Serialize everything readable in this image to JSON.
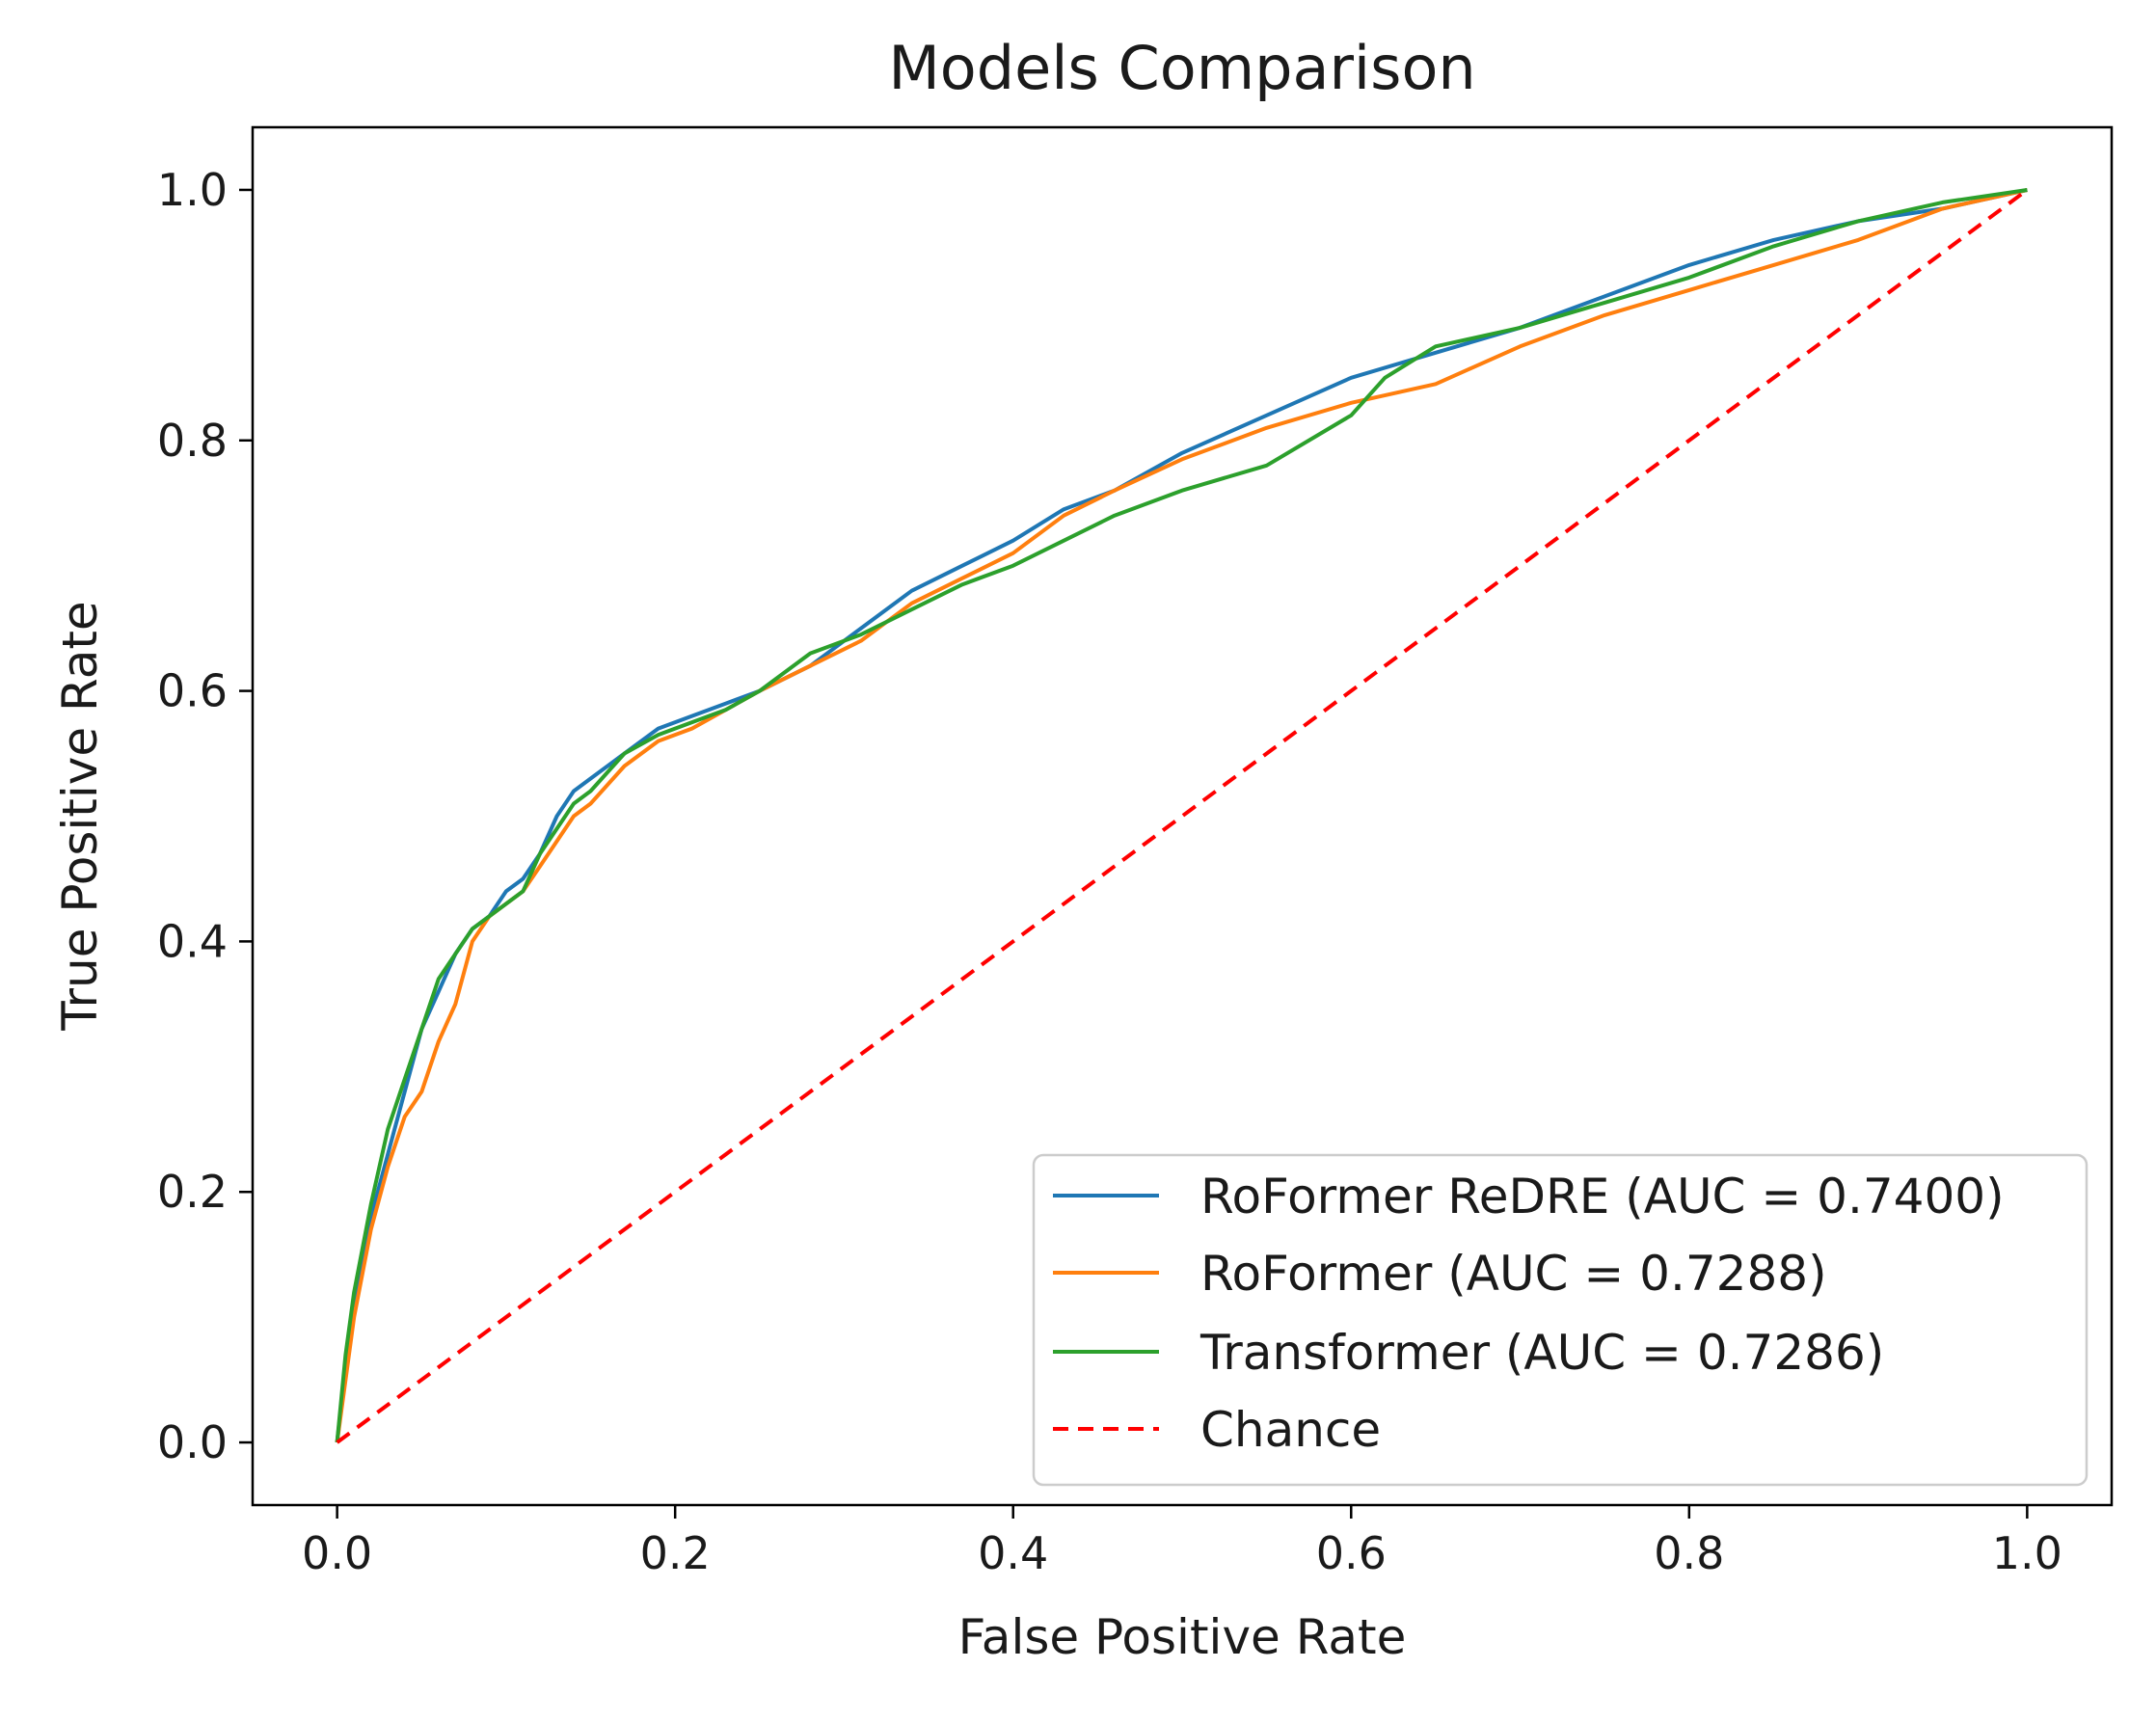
{
  "chart_data": {
    "type": "line",
    "title": "Models Comparison",
    "xlabel": "False Positive Rate",
    "ylabel": "True Positive Rate",
    "xlim": [
      -0.05,
      1.05
    ],
    "ylim": [
      -0.05,
      1.05
    ],
    "xticks": [
      0.0,
      0.2,
      0.4,
      0.6,
      0.8,
      1.0
    ],
    "yticks": [
      0.0,
      0.2,
      0.4,
      0.6,
      0.8,
      1.0
    ],
    "xtick_labels": [
      "0.0",
      "0.2",
      "0.4",
      "0.6",
      "0.8",
      "1.0"
    ],
    "ytick_labels": [
      "0.0",
      "0.2",
      "0.4",
      "0.6",
      "0.8",
      "1.0"
    ],
    "grid": false,
    "legend_position": "lower-right",
    "series": [
      {
        "name": "RoFormer ReDRE (AUC = 0.7400)",
        "color": "#1f77b4",
        "style": "solid",
        "x": [
          0,
          0.005,
          0.01,
          0.02,
          0.03,
          0.04,
          0.05,
          0.06,
          0.07,
          0.08,
          0.09,
          0.1,
          0.11,
          0.12,
          0.13,
          0.14,
          0.15,
          0.17,
          0.19,
          0.21,
          0.23,
          0.25,
          0.28,
          0.31,
          0.34,
          0.37,
          0.4,
          0.43,
          0.46,
          0.5,
          0.55,
          0.6,
          0.65,
          0.7,
          0.75,
          0.8,
          0.85,
          0.9,
          0.95,
          1.0
        ],
        "y": [
          0,
          0.06,
          0.11,
          0.18,
          0.23,
          0.28,
          0.33,
          0.36,
          0.39,
          0.41,
          0.42,
          0.44,
          0.45,
          0.47,
          0.5,
          0.52,
          0.53,
          0.55,
          0.57,
          0.58,
          0.59,
          0.6,
          0.62,
          0.65,
          0.68,
          0.7,
          0.72,
          0.745,
          0.76,
          0.79,
          0.82,
          0.85,
          0.87,
          0.89,
          0.915,
          0.94,
          0.96,
          0.975,
          0.985,
          1.0
        ]
      },
      {
        "name": "RoFormer (AUC = 0.7288)",
        "color": "#ff7f0e",
        "style": "solid",
        "x": [
          0,
          0.005,
          0.01,
          0.02,
          0.03,
          0.04,
          0.05,
          0.06,
          0.07,
          0.08,
          0.09,
          0.1,
          0.11,
          0.12,
          0.13,
          0.14,
          0.15,
          0.17,
          0.19,
          0.21,
          0.23,
          0.25,
          0.28,
          0.31,
          0.34,
          0.37,
          0.4,
          0.43,
          0.46,
          0.5,
          0.55,
          0.6,
          0.65,
          0.7,
          0.75,
          0.8,
          0.85,
          0.9,
          0.95,
          1.0
        ],
        "y": [
          0,
          0.05,
          0.1,
          0.17,
          0.22,
          0.26,
          0.28,
          0.32,
          0.35,
          0.4,
          0.42,
          0.43,
          0.44,
          0.46,
          0.48,
          0.5,
          0.51,
          0.54,
          0.56,
          0.57,
          0.585,
          0.6,
          0.62,
          0.64,
          0.67,
          0.69,
          0.71,
          0.74,
          0.76,
          0.785,
          0.81,
          0.83,
          0.845,
          0.875,
          0.9,
          0.92,
          0.94,
          0.96,
          0.985,
          1.0
        ]
      },
      {
        "name": "Transformer (AUC = 0.7286)",
        "color": "#2ca02c",
        "style": "solid",
        "x": [
          0,
          0.005,
          0.01,
          0.02,
          0.03,
          0.04,
          0.05,
          0.06,
          0.07,
          0.08,
          0.09,
          0.1,
          0.11,
          0.12,
          0.13,
          0.14,
          0.15,
          0.17,
          0.19,
          0.21,
          0.23,
          0.25,
          0.28,
          0.31,
          0.34,
          0.37,
          0.4,
          0.43,
          0.46,
          0.5,
          0.55,
          0.6,
          0.62,
          0.65,
          0.7,
          0.75,
          0.8,
          0.85,
          0.9,
          0.95,
          1.0
        ],
        "y": [
          0,
          0.07,
          0.12,
          0.19,
          0.25,
          0.29,
          0.33,
          0.37,
          0.39,
          0.41,
          0.42,
          0.43,
          0.44,
          0.47,
          0.49,
          0.51,
          0.52,
          0.55,
          0.565,
          0.575,
          0.585,
          0.6,
          0.63,
          0.645,
          0.665,
          0.685,
          0.7,
          0.72,
          0.74,
          0.76,
          0.78,
          0.82,
          0.85,
          0.875,
          0.89,
          0.91,
          0.93,
          0.955,
          0.975,
          0.99,
          1.0
        ]
      },
      {
        "name": "Chance",
        "color": "#ff0000",
        "style": "dashed",
        "x": [
          0,
          1
        ],
        "y": [
          0,
          1
        ]
      }
    ]
  }
}
